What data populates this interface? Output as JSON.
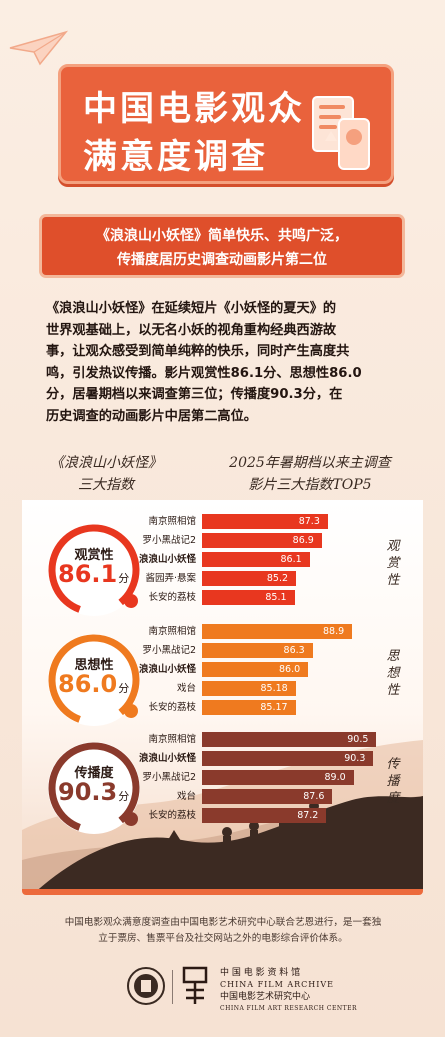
{
  "header": {
    "title_line1": "中国电影观众",
    "title_line2": "满意度调查"
  },
  "banner": {
    "line1": "《浪浪山小妖怪》简单快乐、共鸣广泛，",
    "line2": "传播度居历史调查动画影片第二位"
  },
  "paragraph": [
    "《浪浪山小妖怪》在延续短片《小妖怪的夏天》的",
    "世界观基础上，以无名小妖的视角重构经典西游故",
    "事，让观众感受到简单纯粹的快乐，同时产生高度共",
    "鸣，引发热议传播。影片观赏性86.1分、思想性86.0",
    "分，居暑期档以来调查第三位；传播度90.3分，在",
    "历史调查的动画影片中居第二高位。"
  ],
  "left_heading": {
    "line1": "《浪浪山小妖怪》",
    "line2": "三大指数"
  },
  "right_heading": {
    "line1": "2025年暑期档以来主调查",
    "line2": "影片三大指数TOP5"
  },
  "chart_data": [
    {
      "type": "bar",
      "series": [
        {
          "name": "观赏性",
          "values": [
            87.3,
            86.9,
            86.1,
            85.2,
            85.1
          ]
        }
      ],
      "categories": [
        "南京照相馆",
        "罗小黑战记2",
        "浪浪山小妖怪",
        "酱园弄·悬案",
        "长安的荔枝"
      ],
      "value_labels": [
        "87.3",
        "86.9",
        "86.1",
        "85.2",
        "85.1"
      ],
      "highlight": "浪浪山小妖怪",
      "badge": {
        "label": "观赏性",
        "value": "86.1",
        "unit": "分"
      },
      "side_label": [
        "观",
        "赏",
        "性"
      ],
      "color": "#e8371f"
    },
    {
      "type": "bar",
      "series": [
        {
          "name": "思想性",
          "values": [
            88.9,
            86.3,
            86.0,
            85.18,
            85.17
          ]
        }
      ],
      "categories": [
        "南京照相馆",
        "罗小黑战记2",
        "浪浪山小妖怪",
        "戏台",
        "长安的荔枝"
      ],
      "value_labels": [
        "88.9",
        "86.3",
        "86.0",
        "85.18",
        "85.17"
      ],
      "highlight": "浪浪山小妖怪",
      "badge": {
        "label": "思想性",
        "value": "86.0",
        "unit": "分"
      },
      "side_label": [
        "思",
        "想",
        "性"
      ],
      "color": "#ef7a1f"
    },
    {
      "type": "bar",
      "series": [
        {
          "name": "传播度",
          "values": [
            90.5,
            90.3,
            89.0,
            87.6,
            87.2
          ]
        }
      ],
      "categories": [
        "南京照相馆",
        "浪浪山小妖怪",
        "罗小黑战记2",
        "戏台",
        "长安的荔枝"
      ],
      "value_labels": [
        "90.5",
        "90.3",
        "89.0",
        "87.6",
        "87.2"
      ],
      "highlight": "浪浪山小妖怪",
      "badge": {
        "label": "传播度",
        "value": "90.3",
        "unit": "分"
      },
      "side_label": [
        "传",
        "播",
        "度"
      ],
      "color": "#8a3a2c"
    }
  ],
  "footnote": {
    "line1": "中国电影观众满意度调查由中国电影艺术研究中心联合艺恩进行，是一套独",
    "line2": "立于票房、售票平台及社交网站之外的电影综合评价体系。"
  },
  "logos": {
    "cn_archive": "中 国 电 影 资 料 馆",
    "en_archive": "CHINA FILM ARCHIVE",
    "cn_center": "中国电影艺术研究中心",
    "en_center": "CHINA FILM ART RESEARCH CENTER"
  },
  "colors": {
    "accent": "#e9623c",
    "banner": "#df4f2b",
    "red": "#e8371f",
    "orange": "#ef7a1f",
    "brown": "#8a3a2c"
  },
  "icons": [
    "paper-plane-icon",
    "document-phone-icon",
    "seal-icon",
    "film-archive-logo-icon"
  ]
}
